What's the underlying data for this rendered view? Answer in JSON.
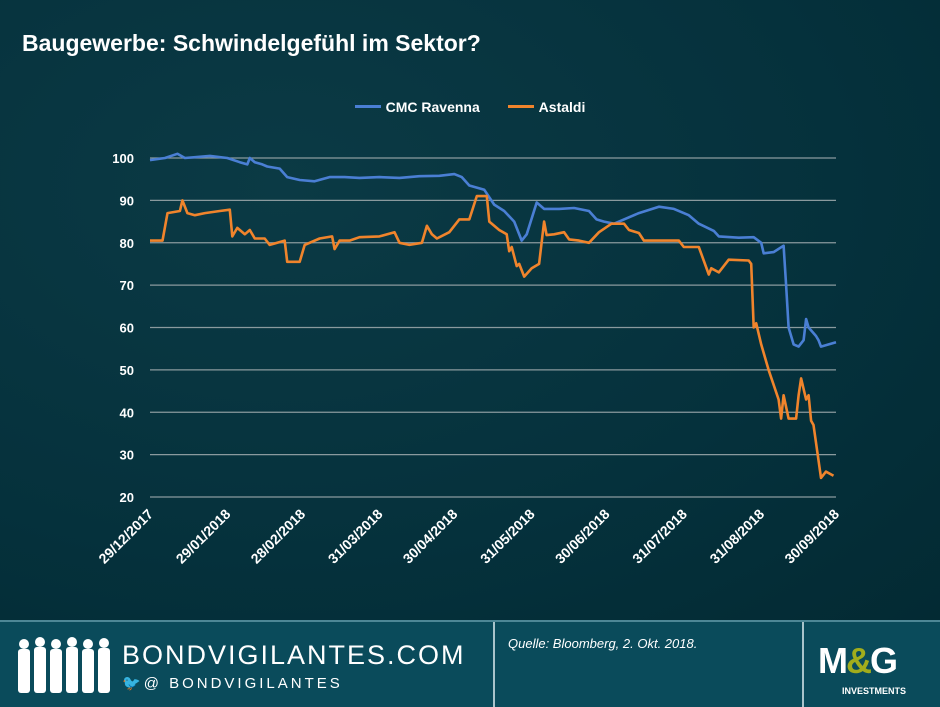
{
  "title": "Baugewerbe: Schwindelgefühl im Sektor?",
  "footer": {
    "site": "BONDVIGILANTES.COM",
    "twitter": "@ BONDVIGILANTES",
    "source": "Quelle: Bloomberg, 2. Okt. 2018.",
    "brand_m": "M",
    "brand_amp": "&",
    "brand_g": "G",
    "brand_sub": "INVESTMENTS"
  },
  "chart_data": {
    "type": "line",
    "title": "",
    "xlabel": "",
    "ylabel": "",
    "ylim": [
      20,
      100
    ],
    "grid": "horizontal",
    "legend": "top-center",
    "yticks": [
      100,
      90,
      80,
      70,
      60,
      50,
      40,
      30,
      20
    ],
    "xticks": [
      "29/12/2017",
      "29/01/2018",
      "28/02/2018",
      "31/03/2018",
      "30/04/2018",
      "31/05/2018",
      "30/06/2018",
      "31/07/2018",
      "31/08/2018",
      "30/09/2018"
    ],
    "xrange": [
      "2017-12-29",
      "2018-09-30"
    ],
    "series": [
      {
        "name": "CMC Ravenna",
        "color": "#4a7fd4",
        "points": [
          [
            "2017-12-29",
            99.5
          ],
          [
            "2018-01-04",
            100
          ],
          [
            "2018-01-09",
            101
          ],
          [
            "2018-01-12",
            100
          ],
          [
            "2018-01-22",
            100.5
          ],
          [
            "2018-01-29",
            100
          ],
          [
            "2018-02-03",
            99
          ],
          [
            "2018-02-06",
            98.5
          ],
          [
            "2018-02-07",
            100
          ],
          [
            "2018-02-09",
            99
          ],
          [
            "2018-02-12",
            98.5
          ],
          [
            "2018-02-14",
            98
          ],
          [
            "2018-02-19",
            97.5
          ],
          [
            "2018-02-22",
            95.5
          ],
          [
            "2018-02-27",
            94.8
          ],
          [
            "2018-03-05",
            94.5
          ],
          [
            "2018-03-11",
            95.5
          ],
          [
            "2018-03-17",
            95.5
          ],
          [
            "2018-03-23",
            95.3
          ],
          [
            "2018-03-31",
            95.5
          ],
          [
            "2018-04-08",
            95.3
          ],
          [
            "2018-04-16",
            95.7
          ],
          [
            "2018-04-24",
            95.8
          ],
          [
            "2018-04-30",
            96.2
          ],
          [
            "2018-05-03",
            95.5
          ],
          [
            "2018-05-06",
            93.5
          ],
          [
            "2018-05-12",
            92.5
          ],
          [
            "2018-05-16",
            89
          ],
          [
            "2018-05-20",
            87.5
          ],
          [
            "2018-05-24",
            85
          ],
          [
            "2018-05-27",
            80.5
          ],
          [
            "2018-05-29",
            82
          ],
          [
            "2018-06-02",
            89.5
          ],
          [
            "2018-06-05",
            88
          ],
          [
            "2018-06-11",
            88
          ],
          [
            "2018-06-17",
            88.2
          ],
          [
            "2018-06-23",
            87.5
          ],
          [
            "2018-06-26",
            85.5
          ],
          [
            "2018-06-29",
            85
          ],
          [
            "2018-07-03",
            84.5
          ],
          [
            "2018-07-07",
            85.5
          ],
          [
            "2018-07-13",
            87
          ],
          [
            "2018-07-21",
            88.5
          ],
          [
            "2018-07-27",
            88
          ],
          [
            "2018-08-02",
            86.5
          ],
          [
            "2018-08-06",
            84.5
          ],
          [
            "2018-08-12",
            82.8
          ],
          [
            "2018-08-14",
            81.5
          ],
          [
            "2018-08-22",
            81.2
          ],
          [
            "2018-08-28",
            81.3
          ],
          [
            "2018-08-31",
            80
          ],
          [
            "2018-09-01",
            77.5
          ],
          [
            "2018-09-05",
            77.8
          ],
          [
            "2018-09-09",
            79.3
          ],
          [
            "2018-09-10",
            70
          ],
          [
            "2018-09-11",
            60
          ],
          [
            "2018-09-13",
            56
          ],
          [
            "2018-09-15",
            55.5
          ],
          [
            "2018-09-17",
            57
          ],
          [
            "2018-09-18",
            62
          ],
          [
            "2018-09-19",
            60
          ],
          [
            "2018-09-22",
            58
          ],
          [
            "2018-09-23",
            57
          ],
          [
            "2018-09-24",
            55.5
          ],
          [
            "2018-09-30",
            56.5
          ]
        ]
      },
      {
        "name": "Astaldi",
        "color": "#f0842c",
        "points": [
          [
            "2017-12-29",
            80.5
          ],
          [
            "2018-01-03",
            80.5
          ],
          [
            "2018-01-05",
            87
          ],
          [
            "2018-01-10",
            87.5
          ],
          [
            "2018-01-11",
            90
          ],
          [
            "2018-01-13",
            87
          ],
          [
            "2018-01-16",
            86.5
          ],
          [
            "2018-01-20",
            87
          ],
          [
            "2018-01-26",
            87.5
          ],
          [
            "2018-01-30",
            87.8
          ],
          [
            "2018-01-31",
            81.5
          ],
          [
            "2018-02-02",
            83.5
          ],
          [
            "2018-02-05",
            82
          ],
          [
            "2018-02-07",
            83
          ],
          [
            "2018-02-09",
            81
          ],
          [
            "2018-02-13",
            81
          ],
          [
            "2018-02-15",
            79.5
          ],
          [
            "2018-02-21",
            80.5
          ],
          [
            "2018-02-22",
            75.5
          ],
          [
            "2018-02-27",
            75.5
          ],
          [
            "2018-03-01",
            79.5
          ],
          [
            "2018-03-07",
            81
          ],
          [
            "2018-03-12",
            81.5
          ],
          [
            "2018-03-13",
            78.5
          ],
          [
            "2018-03-15",
            80.5
          ],
          [
            "2018-03-19",
            80.5
          ],
          [
            "2018-03-23",
            81.3
          ],
          [
            "2018-03-31",
            81.5
          ],
          [
            "2018-04-06",
            82.5
          ],
          [
            "2018-04-08",
            80
          ],
          [
            "2018-04-12",
            79.5
          ],
          [
            "2018-04-17",
            80
          ],
          [
            "2018-04-19",
            84
          ],
          [
            "2018-04-21",
            82
          ],
          [
            "2018-04-23",
            81
          ],
          [
            "2018-04-28",
            82.5
          ],
          [
            "2018-05-02",
            85.5
          ],
          [
            "2018-05-06",
            85.5
          ],
          [
            "2018-05-09",
            91
          ],
          [
            "2018-05-13",
            91
          ],
          [
            "2018-05-14",
            85
          ],
          [
            "2018-05-18",
            83
          ],
          [
            "2018-05-21",
            82
          ],
          [
            "2018-05-22",
            78
          ],
          [
            "2018-05-23",
            79
          ],
          [
            "2018-05-25",
            74.5
          ],
          [
            "2018-05-26",
            75
          ],
          [
            "2018-05-28",
            72
          ],
          [
            "2018-05-31",
            74
          ],
          [
            "2018-06-03",
            75
          ],
          [
            "2018-06-05",
            85
          ],
          [
            "2018-06-06",
            81.8
          ],
          [
            "2018-06-09",
            82
          ],
          [
            "2018-06-13",
            82.5
          ],
          [
            "2018-06-15",
            80.8
          ],
          [
            "2018-06-19",
            80.5
          ],
          [
            "2018-06-23",
            80
          ],
          [
            "2018-06-27",
            82.5
          ],
          [
            "2018-07-02",
            84.5
          ],
          [
            "2018-07-07",
            84.5
          ],
          [
            "2018-07-09",
            83
          ],
          [
            "2018-07-13",
            82.3
          ],
          [
            "2018-07-15",
            80.5
          ],
          [
            "2018-07-29",
            80.5
          ],
          [
            "2018-07-31",
            79
          ],
          [
            "2018-08-06",
            79
          ],
          [
            "2018-08-10",
            72.5
          ],
          [
            "2018-08-11",
            74
          ],
          [
            "2018-08-14",
            73
          ],
          [
            "2018-08-18",
            76
          ],
          [
            "2018-08-26",
            75.8
          ],
          [
            "2018-08-27",
            75
          ],
          [
            "2018-08-28",
            60
          ],
          [
            "2018-08-29",
            61
          ],
          [
            "2018-08-31",
            56
          ],
          [
            "2018-09-03",
            50
          ],
          [
            "2018-09-07",
            43
          ],
          [
            "2018-09-08",
            38.5
          ],
          [
            "2018-09-09",
            44
          ],
          [
            "2018-09-11",
            38.5
          ],
          [
            "2018-09-14",
            38.5
          ],
          [
            "2018-09-15",
            44
          ],
          [
            "2018-09-16",
            48
          ],
          [
            "2018-09-18",
            43
          ],
          [
            "2018-09-19",
            44
          ],
          [
            "2018-09-20",
            38
          ],
          [
            "2018-09-21",
            37
          ],
          [
            "2018-09-24",
            24.5
          ],
          [
            "2018-09-26",
            26
          ],
          [
            "2018-09-29",
            25
          ]
        ]
      }
    ]
  }
}
